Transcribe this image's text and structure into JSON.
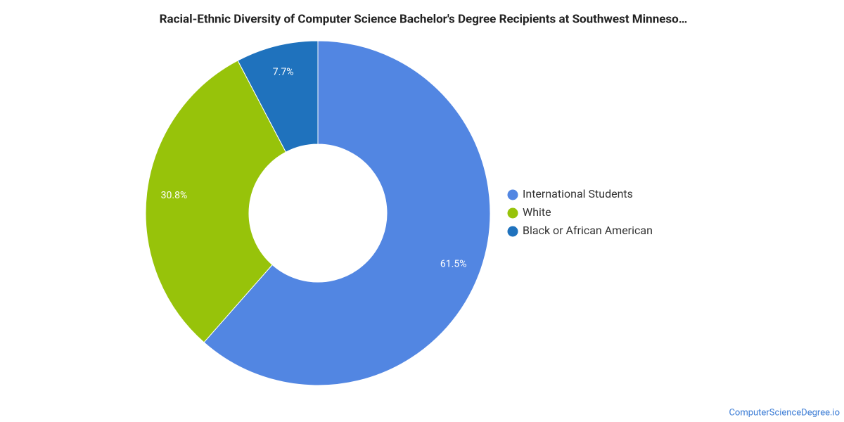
{
  "chart_data": {
    "type": "pie",
    "title": "Racial-Ethnic Diversity of Computer Science Bachelor's Degree Recipients at Southwest Minneso…",
    "categories": [
      "International Students",
      "White",
      "Black or African American"
    ],
    "values": [
      61.5,
      30.8,
      7.7
    ],
    "value_labels": [
      "61.5%",
      "30.8%",
      "7.7%"
    ],
    "colors": [
      "#5286e2",
      "#97c30a",
      "#1f72bd"
    ],
    "donut": true,
    "legend": "right",
    "source": "ComputerScienceDegree.io"
  }
}
